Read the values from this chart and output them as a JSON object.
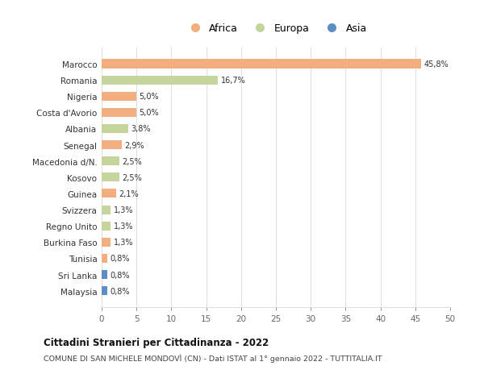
{
  "countries": [
    "Marocco",
    "Romania",
    "Nigeria",
    "Costa d'Avorio",
    "Albania",
    "Senegal",
    "Macedonia d/N.",
    "Kosovo",
    "Guinea",
    "Svizzera",
    "Regno Unito",
    "Burkina Faso",
    "Tunisia",
    "Sri Lanka",
    "Malaysia"
  ],
  "values": [
    45.8,
    16.7,
    5.0,
    5.0,
    3.8,
    2.9,
    2.5,
    2.5,
    2.1,
    1.3,
    1.3,
    1.3,
    0.8,
    0.8,
    0.8
  ],
  "labels": [
    "45,8%",
    "16,7%",
    "5,0%",
    "5,0%",
    "3,8%",
    "2,9%",
    "2,5%",
    "2,5%",
    "2,1%",
    "1,3%",
    "1,3%",
    "1,3%",
    "0,8%",
    "0,8%",
    "0,8%"
  ],
  "continents": [
    "Africa",
    "Europa",
    "Africa",
    "Africa",
    "Europa",
    "Africa",
    "Europa",
    "Europa",
    "Africa",
    "Europa",
    "Europa",
    "Africa",
    "Africa",
    "Asia",
    "Asia"
  ],
  "colors": {
    "Africa": "#F2AE7E",
    "Europa": "#C5D49A",
    "Asia": "#5B8EC4"
  },
  "title": "Cittadini Stranieri per Cittadinanza - 2022",
  "subtitle": "COMUNE DI SAN MICHELE MONDOVÌ (CN) - Dati ISTAT al 1° gennaio 2022 - TUTTITALIA.IT",
  "xlim": [
    0,
    50
  ],
  "xticks": [
    0,
    5,
    10,
    15,
    20,
    25,
    30,
    35,
    40,
    45,
    50
  ],
  "background_color": "#ffffff",
  "grid_color": "#dddddd"
}
